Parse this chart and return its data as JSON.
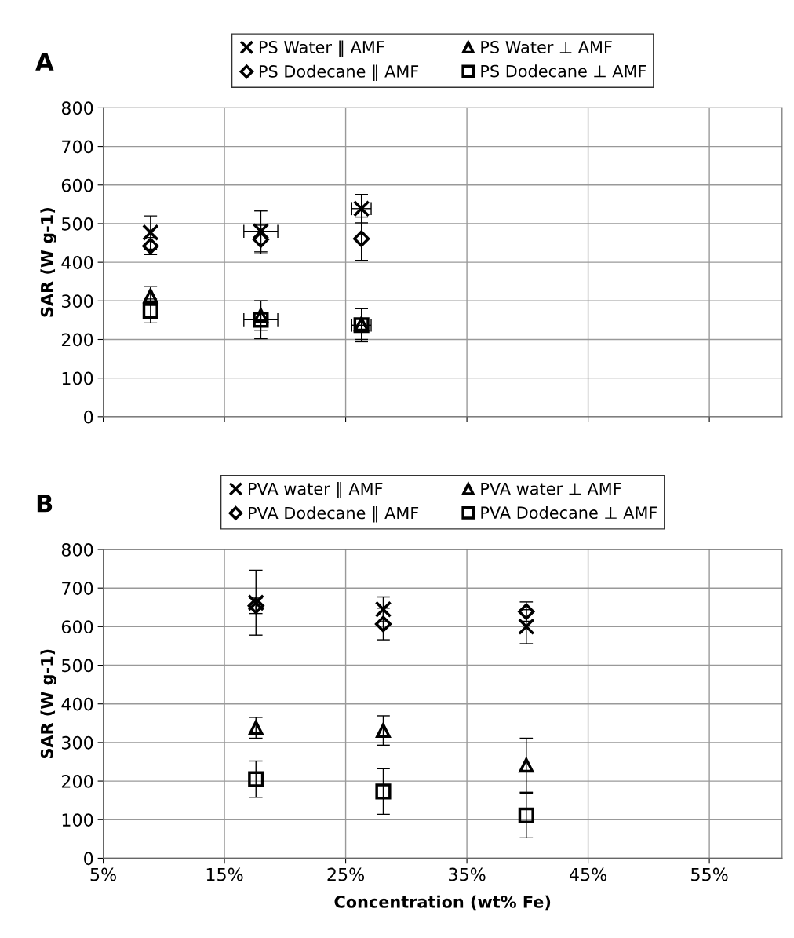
{
  "chart_data": [
    {
      "type": "scatter",
      "title": "A",
      "ylabel": "SAR (W g-1)",
      "xlim": [
        5,
        61
      ],
      "xticks": [
        {
          "value": 5,
          "label": null
        },
        {
          "value": 15,
          "label": null
        },
        {
          "value": 25,
          "label": null
        },
        {
          "value": 35,
          "label": null
        },
        {
          "value": 45,
          "label": null
        },
        {
          "value": 55,
          "label": null
        }
      ],
      "ylim": [
        0,
        800
      ],
      "yticks": [
        0,
        100,
        200,
        300,
        400,
        500,
        600,
        700,
        800
      ],
      "tick_labels": "y",
      "grid": true,
      "legend": "top",
      "series": [
        {
          "name": "PS Water ∥ AMF",
          "color": "#000000",
          "marker": "cross",
          "x": [
            8.9,
            18.0,
            26.3
          ],
          "values": [
            477,
            480,
            539
          ],
          "errors": [
            43,
            53,
            37
          ],
          "xerrors": [
            null,
            1.4,
            0.8
          ]
        },
        {
          "name": "PS Dodecane ∥ AMF",
          "color": "#000000",
          "marker": "diamond",
          "x": [
            8.9,
            18.0,
            26.3
          ],
          "values": [
            442,
            459,
            461
          ],
          "errors": [
            22,
            37,
            56
          ],
          "xerrors": [
            null,
            null,
            null
          ]
        },
        {
          "name": "PS Water ⊥ AMF",
          "color": "#000000",
          "marker": "triangle",
          "x": [
            8.9,
            18.0,
            26.3
          ],
          "values": [
            313,
            262,
            240
          ],
          "errors": [
            24,
            38,
            40
          ],
          "xerrors": [
            null,
            null,
            null
          ]
        },
        {
          "name": "PS Dodecane ⊥ AMF",
          "color": "#000000",
          "marker": "square",
          "x": [
            8.9,
            18.0,
            26.3
          ],
          "values": [
            274,
            251,
            237
          ],
          "errors": [
            31,
            49,
            43
          ],
          "xerrors": [
            null,
            1.4,
            0.8
          ]
        }
      ]
    },
    {
      "type": "scatter",
      "title": "B",
      "xlabel": "Concentration (wt% Fe)",
      "ylabel": "SAR (W g-1)",
      "xlim": [
        5,
        61
      ],
      "xticks": [
        {
          "value": 5,
          "label": "5%"
        },
        {
          "value": 15,
          "label": "15%"
        },
        {
          "value": 25,
          "label": "25%"
        },
        {
          "value": 35,
          "label": "35%"
        },
        {
          "value": 45,
          "label": "45%"
        },
        {
          "value": 55,
          "label": "55%"
        }
      ],
      "ylim": [
        0,
        800
      ],
      "yticks": [
        0,
        100,
        200,
        300,
        400,
        500,
        600,
        700,
        800
      ],
      "grid": true,
      "legend": "top",
      "series": [
        {
          "name": "PVA water ∥ AMF",
          "color": "#000000",
          "marker": "cross",
          "x": [
            17.6,
            28.1,
            39.9
          ],
          "values": [
            662,
            645,
            600
          ],
          "errors": [
            84,
            32,
            44
          ]
        },
        {
          "name": "PVA Dodecane ∥ AMF",
          "color": "#000000",
          "marker": "diamond",
          "x": [
            17.6,
            28.1,
            39.9
          ],
          "values": [
            654,
            607,
            639
          ],
          "errors": [
            20,
            41,
            25
          ]
        },
        {
          "name": "PVA water ⊥ AMF",
          "color": "#000000",
          "marker": "triangle",
          "x": [
            17.6,
            28.1,
            39.9
          ],
          "values": [
            338,
            331,
            241
          ],
          "errors": [
            27,
            38,
            70
          ]
        },
        {
          "name": "PVA Dodecane ⊥ AMF",
          "color": "#000000",
          "marker": "square",
          "x": [
            17.6,
            28.1,
            39.9
          ],
          "values": [
            205,
            173,
            111
          ],
          "errors": [
            47,
            59,
            58
          ]
        }
      ]
    }
  ]
}
